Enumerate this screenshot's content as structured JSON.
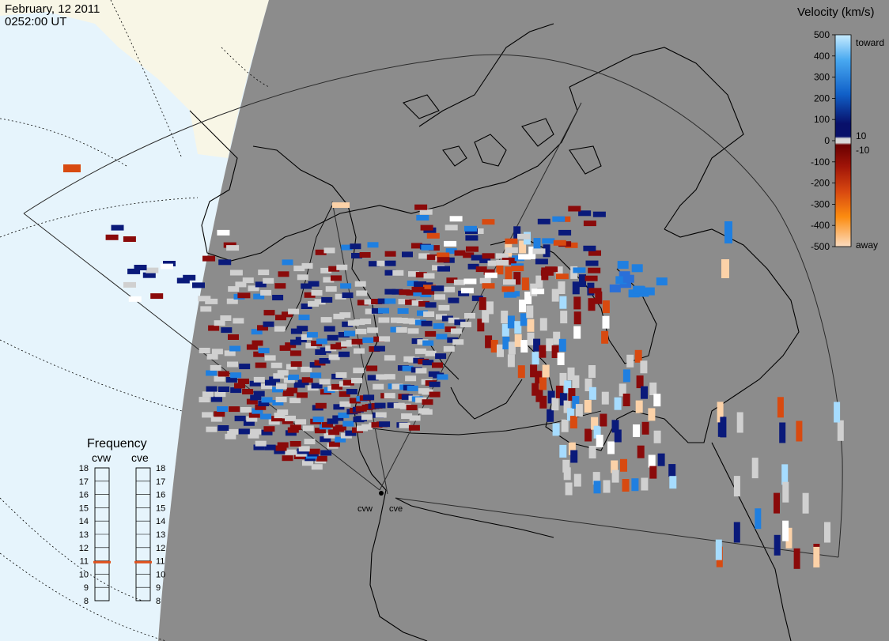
{
  "header": {
    "date": "February, 12 2011",
    "time": "0252:00 UT"
  },
  "legend": {
    "title": "Velocity (km/s)",
    "ticks": [
      "500",
      "400",
      "300",
      "200",
      "100",
      "0",
      "-100",
      "-200",
      "-300",
      "-400",
      "-500"
    ],
    "near_zero": [
      "10",
      "-10"
    ],
    "toward_label": "toward",
    "away_label": "away"
  },
  "frequency": {
    "title": "Frequency",
    "columns": [
      {
        "label": "cvw",
        "value_mhz": 10.9
      },
      {
        "label": "cve",
        "value_mhz": 10.9
      }
    ],
    "scale": [
      "18",
      "17",
      "16",
      "15",
      "14",
      "13",
      "12",
      "11",
      "10",
      "9",
      "8"
    ]
  },
  "radars": [
    {
      "label": "cvw"
    },
    {
      "label": "cve"
    }
  ],
  "colors": {
    "background_grey": "#8c8c8c",
    "ocean": "#e6f4fc",
    "land_outside": "#f8f6e6",
    "toward_light": "#a6dcff",
    "toward_mid": "#1f7fe0",
    "toward_dark": "#0a1a7a",
    "away_dark": "#8a0a0a",
    "away_mid": "#d84a10",
    "away_light": "#fcd2a8",
    "near_zero": "#d0d0d0",
    "freq_marker": "#e0501c"
  }
}
